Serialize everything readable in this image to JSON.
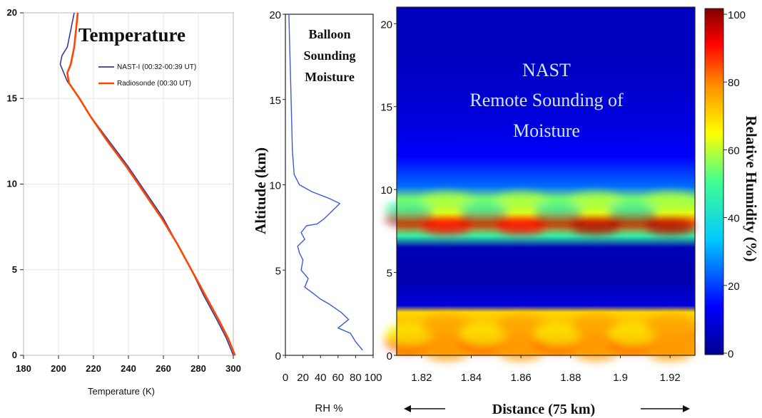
{
  "chart_data": [
    {
      "type": "line",
      "title": "Temperature",
      "xlabel": "Temperature (K)",
      "ylabel": "",
      "xlim": [
        180,
        300
      ],
      "ylim": [
        0,
        20
      ],
      "x_ticks": [
        "180",
        "200",
        "220",
        "240",
        "260",
        "280",
        "300"
      ],
      "y_ticks": [
        "0",
        "5",
        "10",
        "15",
        "20"
      ],
      "legend_position": "top-right",
      "series": [
        {
          "name": "NAST-I (00:32-00:39 UT)",
          "color": "#3a3a9a",
          "points": [
            [
              300,
              0
            ],
            [
              296,
              1
            ],
            [
              291,
              2
            ],
            [
              283,
              3.5
            ],
            [
              276,
              5
            ],
            [
              268,
              6.5
            ],
            [
              260,
              8
            ],
            [
              250,
              9.5
            ],
            [
              240,
              11
            ],
            [
              229,
              12.5
            ],
            [
              218,
              14
            ],
            [
              212,
              15
            ],
            [
              205,
              16
            ],
            [
              201,
              17
            ],
            [
              202,
              17.5
            ],
            [
              205,
              18
            ],
            [
              207,
              19
            ],
            [
              209,
              20
            ]
          ]
        },
        {
          "name": "Radiosonde (00:30 UT)",
          "color": "#ff4500",
          "points": [
            [
              301,
              0
            ],
            [
              297,
              1
            ],
            [
              292,
              2
            ],
            [
              284,
              3.5
            ],
            [
              276,
              5
            ],
            [
              268,
              6.5
            ],
            [
              259,
              8
            ],
            [
              249,
              9.5
            ],
            [
              239,
              11
            ],
            [
              228,
              12.5
            ],
            [
              218,
              14
            ],
            [
              212,
              15
            ],
            [
              206,
              15.9
            ],
            [
              205,
              16.5
            ],
            [
              207,
              17
            ],
            [
              209,
              18
            ],
            [
              210,
              19
            ],
            [
              211,
              20
            ]
          ]
        }
      ]
    },
    {
      "type": "line",
      "title": "Balloon Sounding Moisture",
      "xlabel": "RH %",
      "ylabel": "Altitude (km)",
      "xlim": [
        0,
        100
      ],
      "ylim": [
        0,
        20
      ],
      "x_ticks": [
        "0",
        "20",
        "40",
        "60",
        "80",
        "100"
      ],
      "y_ticks": [
        "0",
        "5",
        "10",
        "15",
        "20"
      ],
      "series": [
        {
          "color": "#3b5bd6",
          "points": [
            [
              88,
              0.3
            ],
            [
              80,
              0.8
            ],
            [
              74,
              1.3
            ],
            [
              60,
              1.6
            ],
            [
              72,
              2.1
            ],
            [
              64,
              2.5
            ],
            [
              50,
              3.0
            ],
            [
              40,
              3.3
            ],
            [
              30,
              3.7
            ],
            [
              22,
              4.0
            ],
            [
              26,
              4.5
            ],
            [
              18,
              5.0
            ],
            [
              20,
              5.6
            ],
            [
              16,
              6.0
            ],
            [
              14,
              6.4
            ],
            [
              22,
              6.8
            ],
            [
              18,
              7.2
            ],
            [
              24,
              7.6
            ],
            [
              36,
              7.7
            ],
            [
              44,
              8.0
            ],
            [
              50,
              8.3
            ],
            [
              56,
              8.6
            ],
            [
              62,
              8.9
            ],
            [
              50,
              9.2
            ],
            [
              30,
              9.6
            ],
            [
              16,
              10.0
            ],
            [
              10,
              10.6
            ],
            [
              8,
              12
            ],
            [
              7,
              14
            ],
            [
              6,
              16
            ],
            [
              5,
              18
            ],
            [
              4,
              20
            ]
          ]
        }
      ]
    },
    {
      "type": "heatmap",
      "title": "NAST Remote Sounding of Moisture",
      "xlabel": "Distance (75 km)",
      "ylabel": "",
      "xlim": [
        1.81,
        1.93
      ],
      "ylim": [
        0,
        21
      ],
      "x_ticks": [
        "1.82",
        "1.84",
        "1.86",
        "1.88",
        "1.9",
        "1.92"
      ],
      "y_ticks": [
        "0",
        "5",
        "10",
        "15",
        "20"
      ],
      "colorbar_label": "Relative Humidity (%)",
      "colorbar_ticks": [
        "0",
        "20",
        "40",
        "60",
        "80",
        "100"
      ],
      "colorbar_range": [
        0,
        100
      ],
      "colorscale": [
        "#00008f",
        "#0000ff",
        "#00c8ff",
        "#40ff90",
        "#ffff00",
        "#ff8c00",
        "#ff0000",
        "#800000"
      ],
      "rh_by_altitude_km": [
        [
          0,
          68
        ],
        [
          1.2,
          70
        ],
        [
          2.6,
          62
        ],
        [
          3.0,
          10
        ],
        [
          4.5,
          4
        ],
        [
          6.5,
          5
        ],
        [
          7.2,
          40
        ],
        [
          8.0,
          75
        ],
        [
          8.6,
          55
        ],
        [
          9.4,
          48
        ],
        [
          10.2,
          22
        ],
        [
          12,
          14
        ],
        [
          14,
          10
        ],
        [
          18,
          6
        ],
        [
          21,
          6
        ]
      ]
    }
  ],
  "labels": {
    "temp_title": "Temperature",
    "temp_xlabel": "Temperature (K)",
    "balloon_title_1": "Balloon",
    "balloon_title_2": "Sounding",
    "balloon_title_3": "Moisture",
    "altitude_label": "Altitude (km)",
    "rh_label": "RH %",
    "nast_line_1": "NAST",
    "nast_line_2": "Remote Sounding of",
    "nast_line_3": "Moisture",
    "distance_label": "Distance (75 km)",
    "colorbar_label": "Relative Humidity (%)"
  }
}
